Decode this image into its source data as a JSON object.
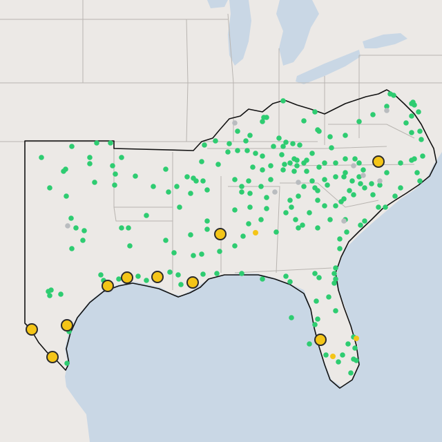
{
  "map": {
    "colors": {
      "water": "#c9d7e5",
      "land": "#ece9e6",
      "border": "#b8b4b0",
      "region_outline": "#111111",
      "green_marker": "#2ecc71",
      "gray_marker": "#b9bcbf",
      "yellow_marker": "#f4c518",
      "large_marker_stroke": "#2b2b2b"
    },
    "legend": "none",
    "markers": {
      "green_count": 230,
      "large_yellow_count": 11,
      "small_yellow_count": 3,
      "gray_count": 10
    }
  }
}
